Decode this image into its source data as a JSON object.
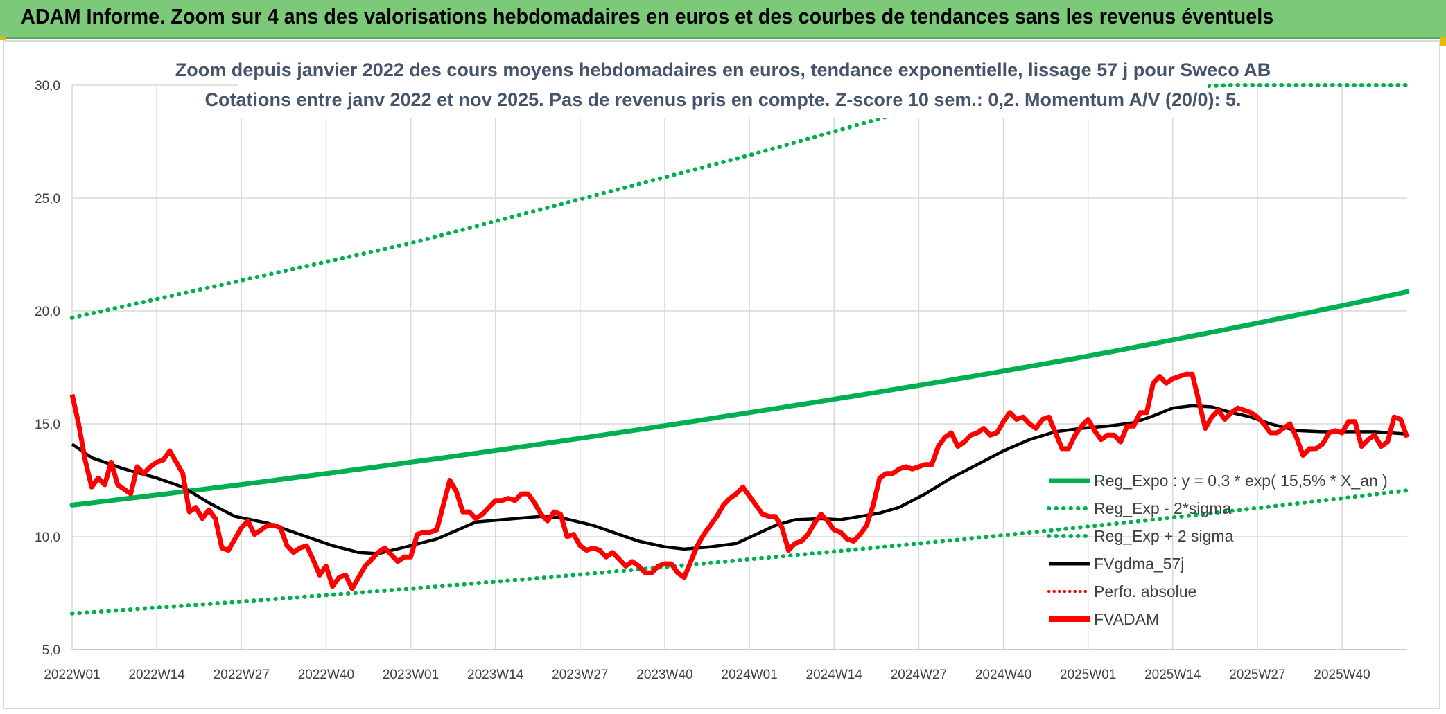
{
  "header": {
    "title": "ADAM Informe. Zoom sur 4 ans des valorisations hebdomadaires en euros et des courbes de tendances sans les revenus éventuels"
  },
  "chart_data": {
    "type": "line",
    "title": "Zoom depuis janvier 2022 des cours moyens hebdomadaires en euros, tendance exponentielle, lissage 57 j pour Sweco AB",
    "subtitle": "Cotations entre janv 2022 et nov 2025. Pas de revenus pris en compte. Z-score 10 sem.: 0,2. Momentum A/V (20/0): 5.",
    "xlabel": "",
    "ylabel": "",
    "ylim": [
      5,
      30
    ],
    "y_ticks": [
      "5,0",
      "10,0",
      "15,0",
      "20,0",
      "25,0",
      "30,0"
    ],
    "y_tick_values": [
      5,
      10,
      15,
      20,
      25,
      30
    ],
    "x_ticks": [
      "2022W01",
      "2022W14",
      "2022W27",
      "2022W40",
      "2023W01",
      "2023W14",
      "2023W27",
      "2023W40",
      "2024W01",
      "2024W14",
      "2024W27",
      "2024W40",
      "2025W01",
      "2025W14",
      "2025W27",
      "2025W40"
    ],
    "x_tick_index": [
      0,
      13,
      26,
      39,
      52,
      65,
      78,
      91,
      104,
      117,
      130,
      143,
      156,
      169,
      182,
      195
    ],
    "n_weeks": 206,
    "grid": true,
    "legend_position": "right-middle",
    "colors": {
      "reg_expo": "#00b050",
      "reg_minus": "#00b050",
      "reg_plus": "#00b050",
      "fvgdma": "#000000",
      "perfo": "#ff0000",
      "fvadam": "#ff0000",
      "grid": "#d9d9d9",
      "banner": "#7cc97a"
    },
    "series": [
      {
        "name": "Reg_Expo : y = 0,3 * exp( 15,5% *  X_an )",
        "style": "solid-thick",
        "values": [
          [
            0,
            11.4
          ],
          [
            52,
            13.3
          ],
          [
            104,
            15.5
          ],
          [
            156,
            18.0
          ],
          [
            205,
            20.85
          ]
        ]
      },
      {
        "name": "Reg_Exp - 2*sigma",
        "style": "dotted",
        "values": [
          [
            0,
            6.6
          ],
          [
            52,
            7.7
          ],
          [
            104,
            9.0
          ],
          [
            156,
            10.45
          ],
          [
            205,
            12.05
          ]
        ]
      },
      {
        "name": "Reg_Exp + 2 sigma",
        "style": "dotted",
        "values": [
          [
            0,
            19.7
          ],
          [
            52,
            23.0
          ],
          [
            104,
            26.9
          ],
          [
            130,
            29.0
          ],
          [
            137,
            29.6
          ],
          [
            178,
            30.0
          ],
          [
            205,
            30.0
          ]
        ]
      },
      {
        "name": "FVgdma_57j",
        "style": "solid",
        "values": [
          [
            0,
            14.1
          ],
          [
            3,
            13.5
          ],
          [
            8,
            13.0
          ],
          [
            13,
            12.6
          ],
          [
            17,
            12.2
          ],
          [
            21,
            11.5
          ],
          [
            25,
            10.9
          ],
          [
            30,
            10.6
          ],
          [
            35,
            10.1
          ],
          [
            40,
            9.6
          ],
          [
            44,
            9.3
          ],
          [
            47,
            9.25
          ],
          [
            52,
            9.6
          ],
          [
            56,
            9.9
          ],
          [
            60,
            10.4
          ],
          [
            62,
            10.65
          ],
          [
            66,
            10.75
          ],
          [
            70,
            10.85
          ],
          [
            72,
            10.9
          ],
          [
            75,
            10.85
          ],
          [
            80,
            10.5
          ],
          [
            84,
            10.1
          ],
          [
            87,
            9.8
          ],
          [
            91,
            9.55
          ],
          [
            94,
            9.45
          ],
          [
            98,
            9.55
          ],
          [
            102,
            9.7
          ],
          [
            105,
            10.1
          ],
          [
            108,
            10.5
          ],
          [
            111,
            10.75
          ],
          [
            115,
            10.8
          ],
          [
            118,
            10.75
          ],
          [
            121,
            10.9
          ],
          [
            124,
            11.05
          ],
          [
            127,
            11.3
          ],
          [
            131,
            11.9
          ],
          [
            135,
            12.6
          ],
          [
            139,
            13.2
          ],
          [
            143,
            13.8
          ],
          [
            147,
            14.3
          ],
          [
            151,
            14.65
          ],
          [
            155,
            14.8
          ],
          [
            159,
            14.9
          ],
          [
            163,
            15.05
          ],
          [
            166,
            15.35
          ],
          [
            169,
            15.7
          ],
          [
            172,
            15.8
          ],
          [
            175,
            15.75
          ],
          [
            178,
            15.5
          ],
          [
            181,
            15.3
          ],
          [
            184,
            15.0
          ],
          [
            188,
            14.7
          ],
          [
            192,
            14.65
          ],
          [
            196,
            14.65
          ],
          [
            200,
            14.65
          ],
          [
            205,
            14.55
          ]
        ]
      },
      {
        "name": "Perfo. absolue",
        "style": "dotted",
        "values": []
      },
      {
        "name": "FVADAM",
        "style": "solid-thick",
        "values": [
          [
            0,
            16.3
          ],
          [
            1,
            15.0
          ],
          [
            2,
            13.4
          ],
          [
            3,
            12.2
          ],
          [
            4,
            12.6
          ],
          [
            5,
            12.3
          ],
          [
            6,
            13.3
          ],
          [
            7,
            12.3
          ],
          [
            8,
            12.1
          ],
          [
            9,
            11.9
          ],
          [
            10,
            13.1
          ],
          [
            11,
            12.8
          ],
          [
            12,
            13.1
          ],
          [
            13,
            13.3
          ],
          [
            14,
            13.4
          ],
          [
            15,
            13.8
          ],
          [
            16,
            13.3
          ],
          [
            17,
            12.8
          ],
          [
            18,
            11.1
          ],
          [
            19,
            11.3
          ],
          [
            20,
            10.8
          ],
          [
            21,
            11.2
          ],
          [
            22,
            10.8
          ],
          [
            23,
            9.5
          ],
          [
            24,
            9.4
          ],
          [
            25,
            9.9
          ],
          [
            26,
            10.4
          ],
          [
            27,
            10.7
          ],
          [
            28,
            10.1
          ],
          [
            29,
            10.3
          ],
          [
            30,
            10.5
          ],
          [
            31,
            10.5
          ],
          [
            32,
            10.4
          ],
          [
            33,
            9.6
          ],
          [
            34,
            9.3
          ],
          [
            35,
            9.5
          ],
          [
            36,
            9.6
          ],
          [
            37,
            9.0
          ],
          [
            38,
            8.3
          ],
          [
            39,
            8.7
          ],
          [
            40,
            7.8
          ],
          [
            41,
            8.2
          ],
          [
            42,
            8.3
          ],
          [
            43,
            7.7
          ],
          [
            44,
            8.2
          ],
          [
            45,
            8.7
          ],
          [
            46,
            9.0
          ],
          [
            47,
            9.3
          ],
          [
            48,
            9.5
          ],
          [
            49,
            9.2
          ],
          [
            50,
            8.9
          ],
          [
            51,
            9.1
          ],
          [
            52,
            9.1
          ],
          [
            53,
            10.1
          ],
          [
            54,
            10.2
          ],
          [
            55,
            10.2
          ],
          [
            56,
            10.3
          ],
          [
            57,
            11.4
          ],
          [
            58,
            12.5
          ],
          [
            59,
            12.0
          ],
          [
            60,
            11.1
          ],
          [
            61,
            11.1
          ],
          [
            62,
            10.8
          ],
          [
            63,
            11.0
          ],
          [
            64,
            11.3
          ],
          [
            65,
            11.6
          ],
          [
            66,
            11.6
          ],
          [
            67,
            11.7
          ],
          [
            68,
            11.6
          ],
          [
            69,
            11.9
          ],
          [
            70,
            11.9
          ],
          [
            71,
            11.5
          ],
          [
            72,
            11.0
          ],
          [
            73,
            10.7
          ],
          [
            74,
            11.1
          ],
          [
            75,
            11.0
          ],
          [
            76,
            10.0
          ],
          [
            77,
            10.1
          ],
          [
            78,
            9.6
          ],
          [
            79,
            9.4
          ],
          [
            80,
            9.5
          ],
          [
            81,
            9.4
          ],
          [
            82,
            9.1
          ],
          [
            83,
            9.3
          ],
          [
            84,
            9.0
          ],
          [
            85,
            8.7
          ],
          [
            86,
            8.9
          ],
          [
            87,
            8.7
          ],
          [
            88,
            8.4
          ],
          [
            89,
            8.4
          ],
          [
            90,
            8.7
          ],
          [
            91,
            8.8
          ],
          [
            92,
            8.8
          ],
          [
            93,
            8.4
          ],
          [
            94,
            8.2
          ],
          [
            95,
            8.9
          ],
          [
            96,
            9.6
          ],
          [
            97,
            10.1
          ],
          [
            98,
            10.5
          ],
          [
            99,
            10.9
          ],
          [
            100,
            11.4
          ],
          [
            101,
            11.7
          ],
          [
            102,
            11.9
          ],
          [
            103,
            12.2
          ],
          [
            104,
            11.8
          ],
          [
            105,
            11.4
          ],
          [
            106,
            11.0
          ],
          [
            107,
            10.9
          ],
          [
            108,
            10.9
          ],
          [
            109,
            10.4
          ],
          [
            110,
            9.4
          ],
          [
            111,
            9.7
          ],
          [
            112,
            9.8
          ],
          [
            113,
            10.1
          ],
          [
            114,
            10.6
          ],
          [
            115,
            11.0
          ],
          [
            116,
            10.7
          ],
          [
            117,
            10.3
          ],
          [
            118,
            10.2
          ],
          [
            119,
            9.9
          ],
          [
            120,
            9.8
          ],
          [
            121,
            10.1
          ],
          [
            122,
            10.5
          ],
          [
            123,
            11.4
          ],
          [
            124,
            12.6
          ],
          [
            125,
            12.8
          ],
          [
            126,
            12.8
          ],
          [
            127,
            13.0
          ],
          [
            128,
            13.1
          ],
          [
            129,
            13.0
          ],
          [
            130,
            13.1
          ],
          [
            131,
            13.2
          ],
          [
            132,
            13.2
          ],
          [
            133,
            14.0
          ],
          [
            134,
            14.4
          ],
          [
            135,
            14.6
          ],
          [
            136,
            14.0
          ],
          [
            137,
            14.2
          ],
          [
            138,
            14.5
          ],
          [
            139,
            14.6
          ],
          [
            140,
            14.8
          ],
          [
            141,
            14.5
          ],
          [
            142,
            14.6
          ],
          [
            143,
            15.1
          ],
          [
            144,
            15.5
          ],
          [
            145,
            15.2
          ],
          [
            146,
            15.3
          ],
          [
            147,
            15.0
          ],
          [
            148,
            14.8
          ],
          [
            149,
            15.2
          ],
          [
            150,
            15.3
          ],
          [
            151,
            14.6
          ],
          [
            152,
            13.9
          ],
          [
            153,
            13.9
          ],
          [
            154,
            14.5
          ],
          [
            155,
            14.9
          ],
          [
            156,
            15.2
          ],
          [
            157,
            14.7
          ],
          [
            158,
            14.3
          ],
          [
            159,
            14.5
          ],
          [
            160,
            14.5
          ],
          [
            161,
            14.2
          ],
          [
            162,
            14.9
          ],
          [
            163,
            14.9
          ],
          [
            164,
            15.5
          ],
          [
            165,
            15.5
          ],
          [
            166,
            16.8
          ],
          [
            167,
            17.1
          ],
          [
            168,
            16.8
          ],
          [
            169,
            17.0
          ],
          [
            170,
            17.1
          ],
          [
            171,
            17.2
          ],
          [
            172,
            17.2
          ],
          [
            173,
            16.0
          ],
          [
            174,
            14.8
          ],
          [
            175,
            15.3
          ],
          [
            176,
            15.6
          ],
          [
            177,
            15.2
          ],
          [
            178,
            15.5
          ],
          [
            179,
            15.7
          ],
          [
            180,
            15.6
          ],
          [
            181,
            15.5
          ],
          [
            182,
            15.3
          ],
          [
            183,
            15.0
          ],
          [
            184,
            14.6
          ],
          [
            185,
            14.6
          ],
          [
            186,
            14.8
          ],
          [
            187,
            15.0
          ],
          [
            188,
            14.4
          ],
          [
            189,
            13.6
          ],
          [
            190,
            13.9
          ],
          [
            191,
            13.9
          ],
          [
            192,
            14.1
          ],
          [
            193,
            14.6
          ],
          [
            194,
            14.7
          ],
          [
            195,
            14.6
          ],
          [
            196,
            15.1
          ],
          [
            197,
            15.1
          ],
          [
            198,
            14.0
          ],
          [
            199,
            14.3
          ],
          [
            200,
            14.5
          ],
          [
            201,
            14.0
          ],
          [
            202,
            14.2
          ],
          [
            203,
            15.3
          ],
          [
            204,
            15.2
          ],
          [
            205,
            14.4
          ]
        ]
      }
    ]
  }
}
